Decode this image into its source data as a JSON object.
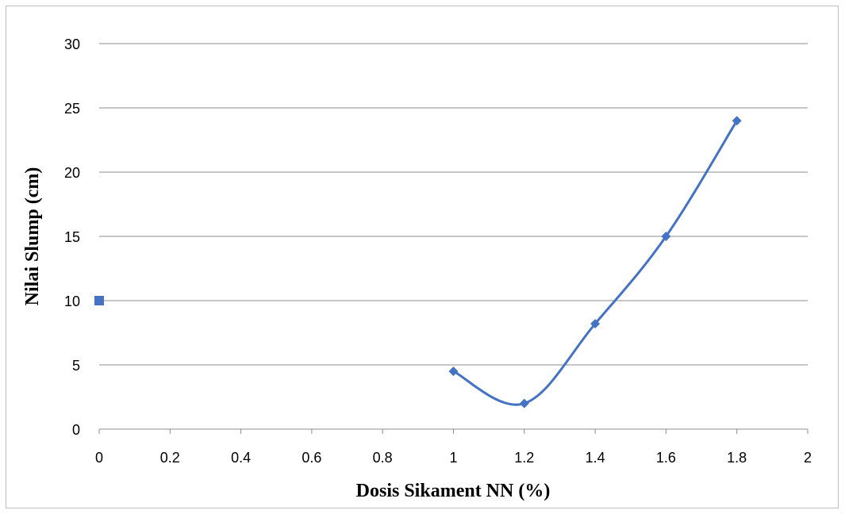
{
  "chart_data": {
    "type": "scatter",
    "title": "",
    "xlabel": "Dosis Sikament NN (%)",
    "ylabel": "Nilai Slump (cm)",
    "xlim": [
      0,
      2
    ],
    "ylim": [
      0,
      30
    ],
    "x_ticks": [
      "0",
      "0.2",
      "0.4",
      "0.6",
      "0.8",
      "1",
      "1.2",
      "1.4",
      "1.6",
      "1.8",
      "2"
    ],
    "y_ticks": [
      "0",
      "5",
      "10",
      "15",
      "20",
      "25",
      "30"
    ],
    "grid": "horizontal",
    "legend": "none",
    "series": [
      {
        "marker": "diamond",
        "line": "smooth",
        "color": "#4472c4",
        "points": [
          {
            "x": 1.0,
            "y": 4.5
          },
          {
            "x": 1.2,
            "y": 2.0
          },
          {
            "x": 1.4,
            "y": 8.2
          },
          {
            "x": 1.6,
            "y": 15.0
          },
          {
            "x": 1.8,
            "y": 24.0
          }
        ]
      },
      {
        "marker": "square",
        "line": "none",
        "color": "#4472c4",
        "points": [
          {
            "x": 0,
            "y": 10
          }
        ]
      }
    ]
  }
}
